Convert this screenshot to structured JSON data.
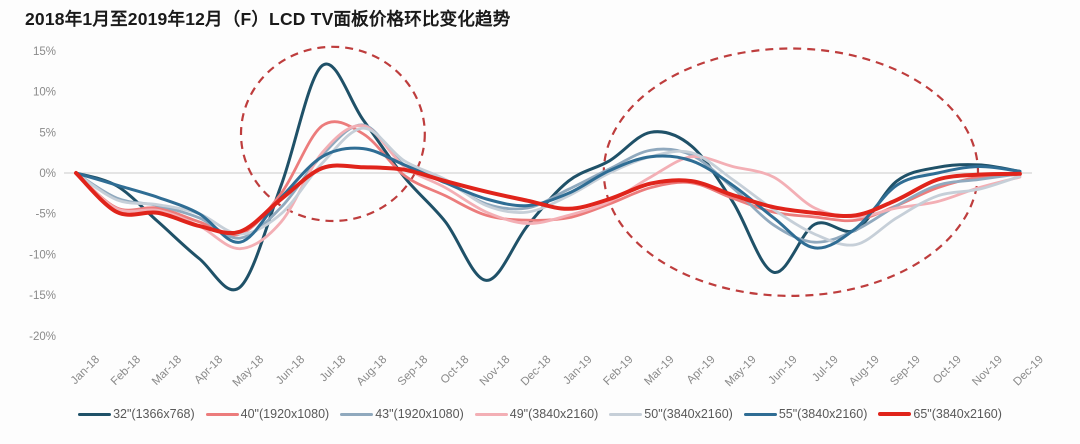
{
  "chart_data": {
    "type": "line",
    "title": "2018年1月至2019年12月（F）LCD TV面板价格环比变化趋势",
    "x_labels": [
      "Jan-18",
      "Feb-18",
      "Mar-18",
      "Apr-18",
      "May-18",
      "Jun-18",
      "Jul-18",
      "Aug-18",
      "Sep-18",
      "Oct-18",
      "Nov-18",
      "Dec-18",
      "Jan-19",
      "Feb-19",
      "Mar-19",
      "Apr-19",
      "May-19",
      "Jun-19",
      "Jul-19",
      "Aug-19",
      "Sep-19",
      "Oct-19",
      "Nov-19",
      "Dec-19"
    ],
    "ylim": [
      -20,
      15
    ],
    "yticks": [
      15,
      10,
      5,
      0,
      -5,
      -10,
      -15,
      -20
    ],
    "ytick_suffix": "%",
    "grid": "zero-baseline-only",
    "legend_position": "bottom",
    "series": [
      {
        "name": "32\"(1366x768)",
        "color": "#1F5168",
        "width": 3,
        "values": [
          0,
          -1.6,
          -6,
          -10.5,
          -14,
          -1.5,
          13.2,
          6.5,
          -0.5,
          -6,
          -13.2,
          -6.5,
          -1,
          1.5,
          5,
          3.3,
          -3.5,
          -12.2,
          -6.3,
          -7,
          -1,
          0.7,
          1,
          0.2
        ]
      },
      {
        "name": "40\"(1920x1080)",
        "color": "#EC7C7C",
        "width": 2.8,
        "values": [
          0,
          -4.3,
          -4.3,
          -6,
          -7.5,
          -2.5,
          5.8,
          4.8,
          -0.3,
          -2.8,
          -5.2,
          -5.8,
          -5.5,
          -3.8,
          -1.8,
          -1.2,
          -3.1,
          -4.8,
          -5.4,
          -5.8,
          -4,
          -1.8,
          -0.5,
          -0.2
        ]
      },
      {
        "name": "43\"(1920x1080)",
        "color": "#90A9BE",
        "width": 2.8,
        "values": [
          0,
          -3.1,
          -4,
          -5.5,
          -8,
          -4.2,
          2.2,
          5.9,
          1,
          -1,
          -3.8,
          -4.3,
          -2,
          0.5,
          2.8,
          2.2,
          -1.8,
          -6.4,
          -8.5,
          -7,
          -4,
          -1.5,
          -0.8,
          -0.1
        ]
      },
      {
        "name": "49\"(3840x2160)",
        "color": "#F3AFB5",
        "width": 2.8,
        "values": [
          0,
          -4.4,
          -4.6,
          -6.5,
          -9.3,
          -6,
          2.5,
          5.8,
          0.8,
          -1.8,
          -4.8,
          -6.2,
          -5.2,
          -3.5,
          -0.5,
          2,
          0.8,
          -0.5,
          -4.3,
          -5.4,
          -4.3,
          -3.5,
          -1.8,
          -0.5
        ]
      },
      {
        "name": "50\"(3840x2160)",
        "color": "#C6CFD8",
        "width": 2.8,
        "values": [
          0,
          -3.3,
          -3.9,
          -5,
          -7.5,
          -5,
          1.2,
          5.5,
          1.5,
          -0.8,
          -4,
          -4.8,
          -2.8,
          0,
          2,
          2.5,
          -0.8,
          -4.5,
          -7.5,
          -8.8,
          -5.5,
          -2.8,
          -2,
          -0.4
        ]
      },
      {
        "name": "55\"(3840x2160)",
        "color": "#2F6D94",
        "width": 3,
        "values": [
          0,
          -1.5,
          -3,
          -5,
          -8.5,
          -3,
          2,
          3,
          1,
          -1.2,
          -3.2,
          -4,
          -2.5,
          0.3,
          2,
          1.5,
          -1.5,
          -5.5,
          -9.2,
          -6.8,
          -1.5,
          0,
          0.8,
          0.2
        ]
      },
      {
        "name": "65\"(3840x2160)",
        "color": "#E0241B",
        "width": 4,
        "values": [
          0,
          -4.8,
          -4.9,
          -6.5,
          -7.2,
          -3.2,
          0.6,
          0.7,
          0.4,
          -1,
          -2.3,
          -3.4,
          -4.4,
          -3.2,
          -1.3,
          -1,
          -2.7,
          -4.2,
          -4.9,
          -5.2,
          -3.3,
          -0.8,
          -0.2,
          -0.1
        ]
      }
    ],
    "annotations": [
      {
        "type": "ellipse",
        "center_month_index": 6.26,
        "center_value": 4.8,
        "radius_months": 2.24,
        "radius_value": 10.7,
        "color": "#BE3D3D",
        "style": "dashed"
      },
      {
        "type": "ellipse",
        "center_month_index": 17.42,
        "center_value": 0.1,
        "radius_months": 4.56,
        "radius_value": 15.2,
        "color": "#BE3D3D",
        "style": "dashed"
      }
    ],
    "colors": {
      "zero_line": "#D6D6D6",
      "axis_label": "#8A8A8A",
      "legend_label": "#595959",
      "title": "#1A1A1A"
    }
  }
}
